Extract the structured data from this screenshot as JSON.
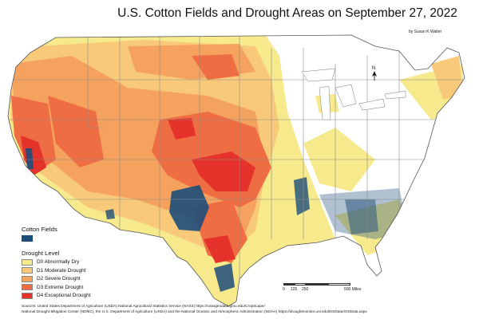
{
  "title": "U.S. Cotton Fields and Drought Areas on September 27, 2022",
  "author": "by Susan K Walter",
  "legend": {
    "cotton_heading": "Cotton Fields",
    "drought_heading": "Drought Level",
    "items": [
      {
        "label": "D0 Abnormally Dry",
        "color": "#f6ea8c"
      },
      {
        "label": "D1 Moderate Drought",
        "color": "#f9c97a"
      },
      {
        "label": "D2 Severe Drought",
        "color": "#f4a25e"
      },
      {
        "label": "D3 Extreme Drought",
        "color": "#ef6d43"
      },
      {
        "label": "D4 Exceptional Drought",
        "color": "#e5322b"
      }
    ],
    "cotton_color": "#1d4e7a"
  },
  "scale": {
    "labels": [
      "0",
      "125",
      "250",
      "500 Miles"
    ]
  },
  "north_label": "N",
  "sources": {
    "line1": "Sources: United States Department of Agriculture (USDA) National Agricultural Statistics Service (NASS) https://nassgeodata.gmu.edu/CropScape/",
    "line2": "National Drought Mitigation Center (NDMC), the U.S. Department of Agriculture (USDA) and the National Oceanic and Atmospheric Administration (NOAA) https://droughtmonitor.unl.edu/DmData/GISData.aspx"
  }
}
